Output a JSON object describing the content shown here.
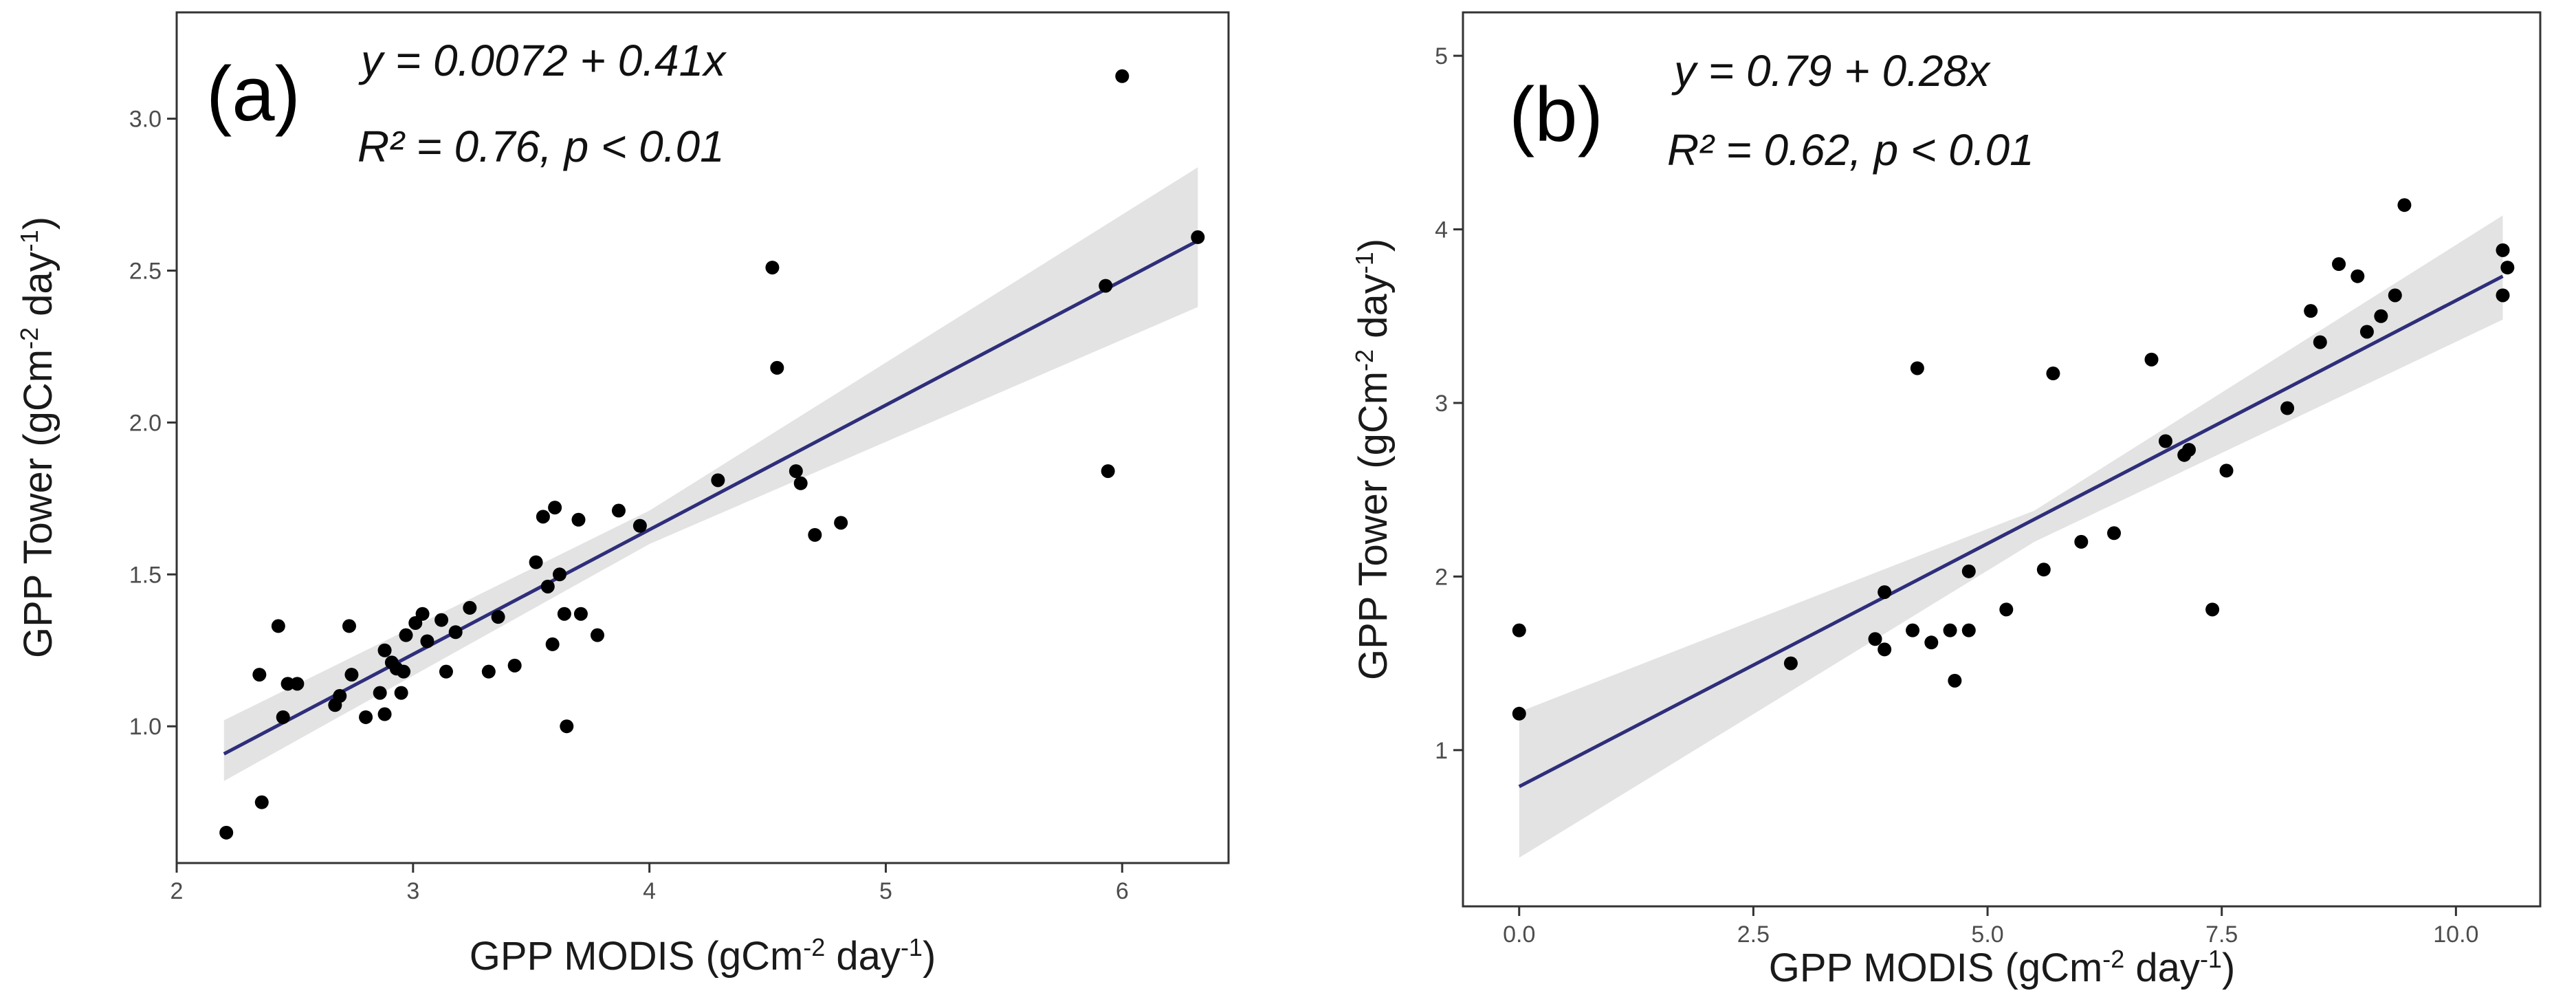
{
  "chart_data": [
    {
      "type": "scatter",
      "panel_label": "(a)",
      "annotation_line1": "y = 0.0072 + 0.41x",
      "annotation_line2": "R² = 0.76,  p < 0.01",
      "xlabel": "GPP MODIS (gCm",
      "xlabel_sup1": "-2",
      "xlabel_mid": " day",
      "xlabel_sup2": "-1",
      "xlabel_end": ")",
      "ylabel": "GPP Tower (gCm",
      "ylabel_sup1": "-2",
      "ylabel_mid": " day",
      "ylabel_sup2": "-1",
      "ylabel_end": ")",
      "xlim": [
        2.0,
        6.45
      ],
      "ylim": [
        0.55,
        3.35
      ],
      "xticks": [
        2,
        3,
        4,
        5,
        6
      ],
      "xtick_labels": [
        "2",
        "3",
        "4",
        "5",
        "6"
      ],
      "yticks": [
        1.0,
        1.5,
        2.0,
        2.5,
        3.0
      ],
      "ytick_labels": [
        "1.0",
        "1.5",
        "2.0",
        "2.5",
        "3.0"
      ],
      "fit": {
        "intercept": 0.0072,
        "slope": 0.41,
        "x_range": [
          2.2,
          6.32
        ]
      },
      "ci_band": {
        "x": [
          2.2,
          4.0,
          6.32
        ],
        "lower": [
          0.82,
          1.6,
          2.38
        ],
        "upper": [
          1.02,
          1.71,
          2.84
        ]
      },
      "points": [
        {
          "x": 2.21,
          "y": 0.65
        },
        {
          "x": 2.36,
          "y": 0.75
        },
        {
          "x": 2.35,
          "y": 1.17
        },
        {
          "x": 2.43,
          "y": 1.33
        },
        {
          "x": 2.45,
          "y": 1.03
        },
        {
          "x": 2.47,
          "y": 1.14
        },
        {
          "x": 2.51,
          "y": 1.14
        },
        {
          "x": 2.67,
          "y": 1.07
        },
        {
          "x": 2.69,
          "y": 1.1
        },
        {
          "x": 2.73,
          "y": 1.33
        },
        {
          "x": 2.74,
          "y": 1.17
        },
        {
          "x": 2.8,
          "y": 1.03
        },
        {
          "x": 2.86,
          "y": 1.11
        },
        {
          "x": 2.88,
          "y": 1.04
        },
        {
          "x": 2.88,
          "y": 1.25
        },
        {
          "x": 2.91,
          "y": 1.21
        },
        {
          "x": 2.93,
          "y": 1.19
        },
        {
          "x": 2.95,
          "y": 1.11
        },
        {
          "x": 2.96,
          "y": 1.18
        },
        {
          "x": 2.97,
          "y": 1.3
        },
        {
          "x": 3.01,
          "y": 1.34
        },
        {
          "x": 3.04,
          "y": 1.37
        },
        {
          "x": 3.06,
          "y": 1.28
        },
        {
          "x": 3.12,
          "y": 1.35
        },
        {
          "x": 3.14,
          "y": 1.18
        },
        {
          "x": 3.18,
          "y": 1.31
        },
        {
          "x": 3.24,
          "y": 1.39
        },
        {
          "x": 3.32,
          "y": 1.18
        },
        {
          "x": 3.36,
          "y": 1.36
        },
        {
          "x": 3.43,
          "y": 1.2
        },
        {
          "x": 3.52,
          "y": 1.54
        },
        {
          "x": 3.55,
          "y": 1.69
        },
        {
          "x": 3.57,
          "y": 1.46
        },
        {
          "x": 3.59,
          "y": 1.27
        },
        {
          "x": 3.6,
          "y": 1.72
        },
        {
          "x": 3.62,
          "y": 1.5
        },
        {
          "x": 3.64,
          "y": 1.37
        },
        {
          "x": 3.65,
          "y": 1.0
        },
        {
          "x": 3.7,
          "y": 1.68
        },
        {
          "x": 3.71,
          "y": 1.37
        },
        {
          "x": 3.78,
          "y": 1.3
        },
        {
          "x": 3.87,
          "y": 1.71
        },
        {
          "x": 3.96,
          "y": 1.66
        },
        {
          "x": 4.29,
          "y": 1.81
        },
        {
          "x": 4.52,
          "y": 2.51
        },
        {
          "x": 4.54,
          "y": 2.18
        },
        {
          "x": 4.62,
          "y": 1.84
        },
        {
          "x": 4.64,
          "y": 1.8
        },
        {
          "x": 4.7,
          "y": 1.63
        },
        {
          "x": 4.81,
          "y": 1.67
        },
        {
          "x": 5.93,
          "y": 2.45
        },
        {
          "x": 5.94,
          "y": 1.84
        },
        {
          "x": 6.0,
          "y": 3.14
        },
        {
          "x": 6.32,
          "y": 2.61
        }
      ]
    },
    {
      "type": "scatter",
      "panel_label": "(b)",
      "annotation_line1": "y = 0.79 + 0.28x",
      "annotation_line2": "R² = 0.62,    p < 0.01",
      "xlabel": "GPP MODIS (gCm",
      "xlabel_sup1": "-2",
      "xlabel_mid": " day",
      "xlabel_sup2": "-1",
      "xlabel_end": ")",
      "ylabel": "GPP Tower (gCm",
      "ylabel_sup1": "-2",
      "ylabel_mid": " day",
      "ylabel_sup2": "-1",
      "ylabel_end": ")",
      "xlim": [
        -0.6,
        10.9
      ],
      "ylim": [
        0.1,
        5.25
      ],
      "xticks": [
        0,
        2.5,
        5,
        7.5,
        10
      ],
      "xtick_labels": [
        "0.0",
        "2.5",
        "5.0",
        "7.5",
        "10.0"
      ],
      "yticks": [
        1,
        2,
        3,
        4,
        5
      ],
      "ytick_labels": [
        "1",
        "2",
        "3",
        "4",
        "5"
      ],
      "fit": {
        "intercept": 0.79,
        "slope": 0.28,
        "x_range": [
          0,
          10.5
        ]
      },
      "ci_band": {
        "x": [
          0,
          5.5,
          10.5
        ],
        "lower": [
          0.38,
          2.2,
          3.48
        ],
        "upper": [
          1.22,
          2.38,
          4.08
        ]
      },
      "points": [
        {
          "x": 0.0,
          "y": 1.69
        },
        {
          "x": 0.0,
          "y": 1.21
        },
        {
          "x": 2.9,
          "y": 1.5
        },
        {
          "x": 3.8,
          "y": 1.64
        },
        {
          "x": 3.9,
          "y": 1.58
        },
        {
          "x": 3.9,
          "y": 1.91
        },
        {
          "x": 4.2,
          "y": 1.69
        },
        {
          "x": 4.25,
          "y": 3.2
        },
        {
          "x": 4.4,
          "y": 1.62
        },
        {
          "x": 4.6,
          "y": 1.69
        },
        {
          "x": 4.65,
          "y": 1.4
        },
        {
          "x": 4.8,
          "y": 2.03
        },
        {
          "x": 4.8,
          "y": 1.69
        },
        {
          "x": 5.2,
          "y": 1.81
        },
        {
          "x": 5.6,
          "y": 2.04
        },
        {
          "x": 5.7,
          "y": 3.17
        },
        {
          "x": 6.0,
          "y": 2.2
        },
        {
          "x": 6.35,
          "y": 2.25
        },
        {
          "x": 6.75,
          "y": 3.25
        },
        {
          "x": 6.9,
          "y": 2.78
        },
        {
          "x": 7.1,
          "y": 2.7
        },
        {
          "x": 7.15,
          "y": 2.73
        },
        {
          "x": 7.4,
          "y": 1.81
        },
        {
          "x": 7.55,
          "y": 2.61
        },
        {
          "x": 8.2,
          "y": 2.97
        },
        {
          "x": 8.45,
          "y": 3.53
        },
        {
          "x": 8.55,
          "y": 3.35
        },
        {
          "x": 8.75,
          "y": 3.8
        },
        {
          "x": 8.95,
          "y": 3.73
        },
        {
          "x": 9.05,
          "y": 3.41
        },
        {
          "x": 9.2,
          "y": 3.5
        },
        {
          "x": 9.35,
          "y": 3.62
        },
        {
          "x": 9.45,
          "y": 4.14
        },
        {
          "x": 10.5,
          "y": 3.88
        },
        {
          "x": 10.5,
          "y": 3.62
        },
        {
          "x": 10.55,
          "y": 3.78
        }
      ]
    }
  ]
}
